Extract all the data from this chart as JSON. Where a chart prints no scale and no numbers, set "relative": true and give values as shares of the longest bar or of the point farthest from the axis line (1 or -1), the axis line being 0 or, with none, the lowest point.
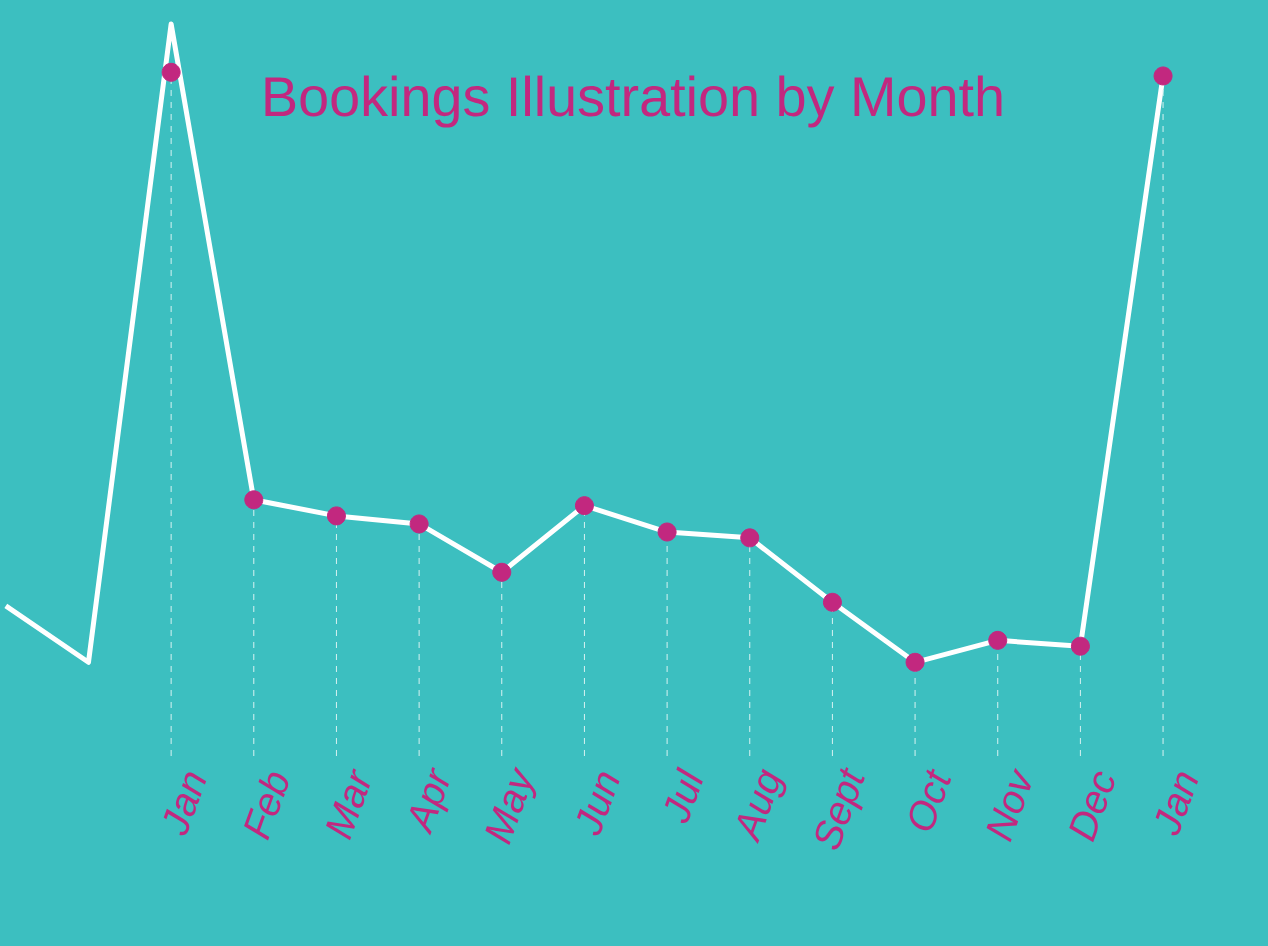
{
  "chart_data": {
    "type": "line",
    "title": "Bookings Illustration by Month",
    "relative": true,
    "categories": [
      null,
      null,
      "Jan",
      "Feb",
      "Mar",
      "Apr",
      "May",
      "Jun",
      "Jul",
      "Aug",
      "Sept",
      "Oct",
      "Nov",
      "Dec",
      "Jan"
    ],
    "tick_labels": "x",
    "series": [
      {
        "color": "#ffffff",
        "marker": "none",
        "values": [
          0.205,
          0.128,
          1,
          0.35,
          0.328,
          0.317,
          0.251,
          0.342,
          0.306,
          0.298,
          0.21,
          0.128,
          0.158,
          0.15,
          0.929
        ]
      },
      {
        "type": "lollipop",
        "color": "#c2287f",
        "marker": "circle",
        "values": [
          null,
          null,
          0.934,
          0.35,
          0.328,
          0.317,
          0.251,
          0.342,
          0.306,
          0.298,
          0.21,
          0.128,
          0.158,
          0.15,
          0.929
        ]
      }
    ]
  }
}
